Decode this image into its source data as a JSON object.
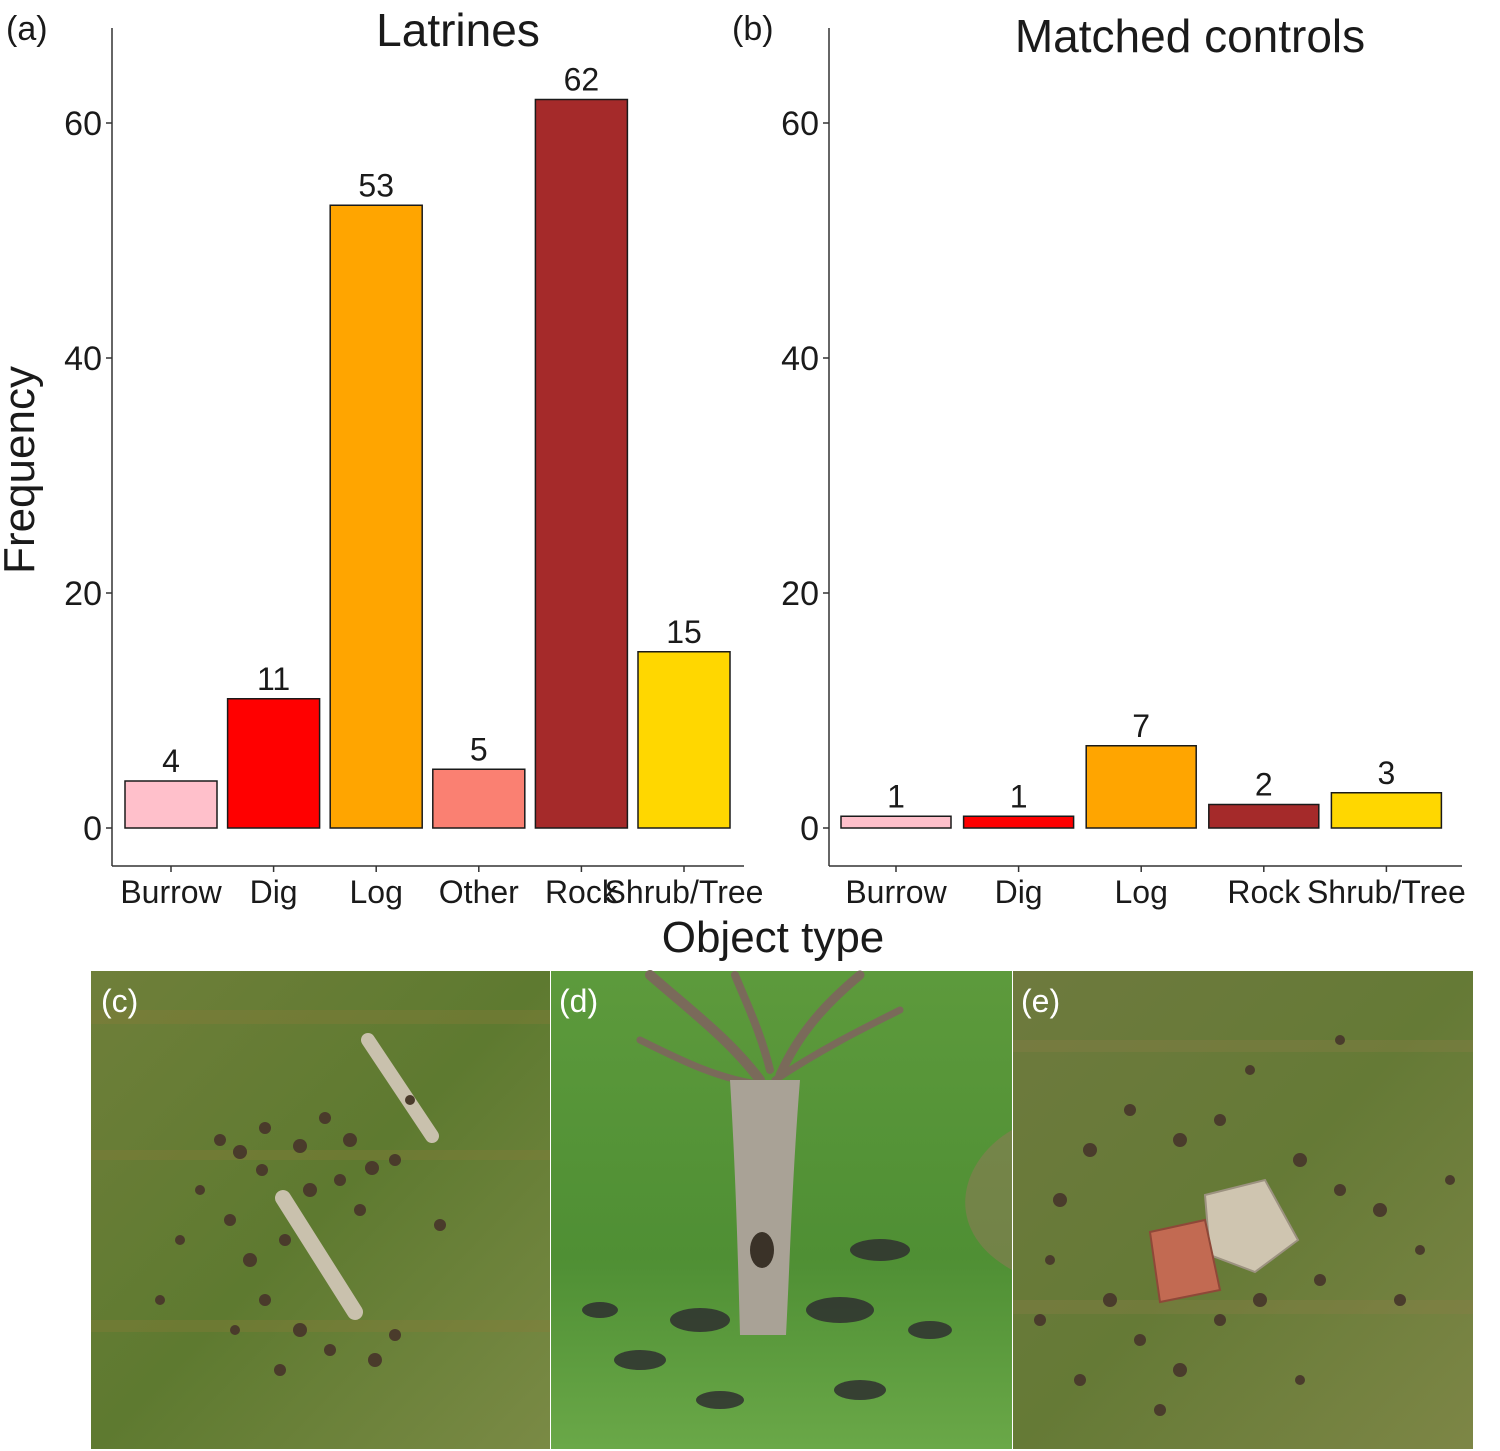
{
  "shared": {
    "ylabel": "Frequency",
    "xlabel": "Object type"
  },
  "chart_data": [
    {
      "type": "bar",
      "panel": "(a)",
      "title": "Latrines",
      "categories": [
        "Burrow",
        "Dig",
        "Log",
        "Other",
        "Rock",
        "Shrub/Tree"
      ],
      "values": [
        4,
        11,
        53,
        5,
        62,
        15
      ],
      "colors": [
        "#FFC0CB",
        "#FF0000",
        "#FFA500",
        "#FA8072",
        "#A52A2A",
        "#FFD700"
      ],
      "ylim": [
        0,
        66
      ],
      "yticks": [
        0,
        20,
        40,
        60
      ],
      "grid": false,
      "legend": "none"
    },
    {
      "type": "bar",
      "panel": "(b)",
      "title": "Matched controls",
      "categories": [
        "Burrow",
        "Dig",
        "Log",
        "Rock",
        "Shrub/Tree"
      ],
      "values": [
        1,
        1,
        7,
        2,
        3
      ],
      "colors": [
        "#FFC0CB",
        "#FF0000",
        "#FFA500",
        "#A52A2A",
        "#FFD700"
      ],
      "ylim": [
        0,
        66
      ],
      "yticks": [
        0,
        20,
        40,
        60
      ],
      "grid": false,
      "legend": "none"
    }
  ],
  "photos": [
    {
      "label": "(c)",
      "subject": "log-latrine-photo"
    },
    {
      "label": "(d)",
      "subject": "tree-latrine-photo"
    },
    {
      "label": "(e)",
      "subject": "rock-latrine-photo"
    }
  ]
}
